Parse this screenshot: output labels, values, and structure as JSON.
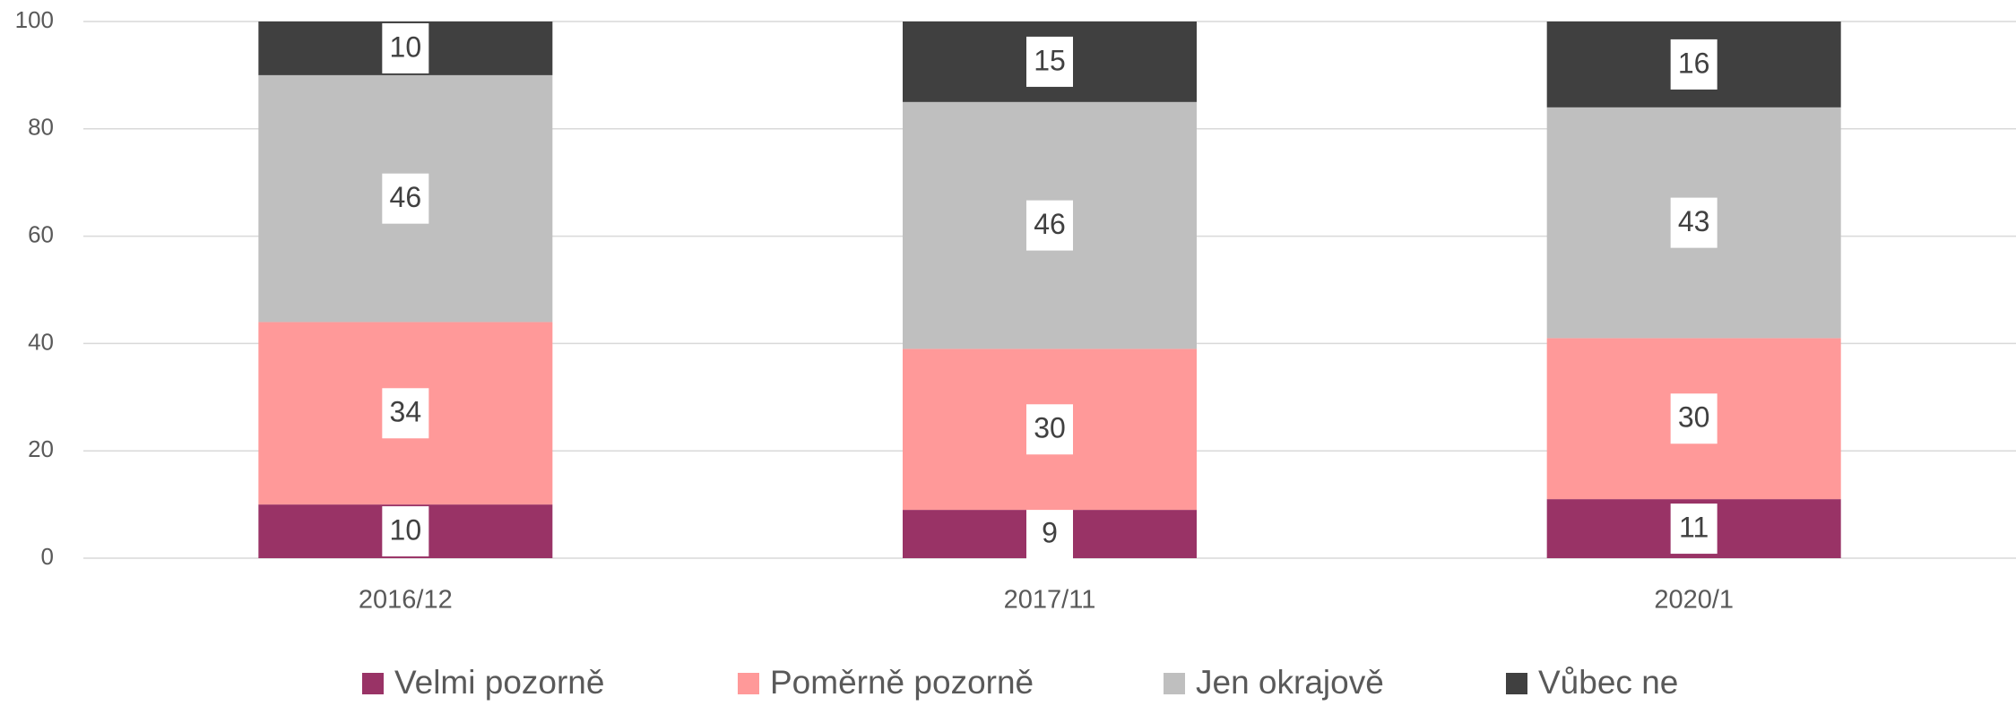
{
  "chart_data": {
    "type": "stacked_bar",
    "categories": [
      "2016/12",
      "2017/11",
      "2020/1"
    ],
    "series": [
      {
        "name": "Velmi pozorně",
        "color": "#993366",
        "values": [
          10,
          9,
          11
        ]
      },
      {
        "name": "Poměrně pozorně",
        "color": "#ff9999",
        "values": [
          34,
          30,
          30
        ]
      },
      {
        "name": "Jen okrajově",
        "color": "#bfbfbf",
        "values": [
          46,
          46,
          43
        ]
      },
      {
        "name": "Vůbec ne",
        "color": "#404040",
        "values": [
          10,
          15,
          16
        ]
      }
    ],
    "ylim": [
      0,
      100
    ],
    "yticks": [
      0,
      20,
      40,
      60,
      80,
      100
    ],
    "grid": true,
    "legend": "bottom"
  }
}
